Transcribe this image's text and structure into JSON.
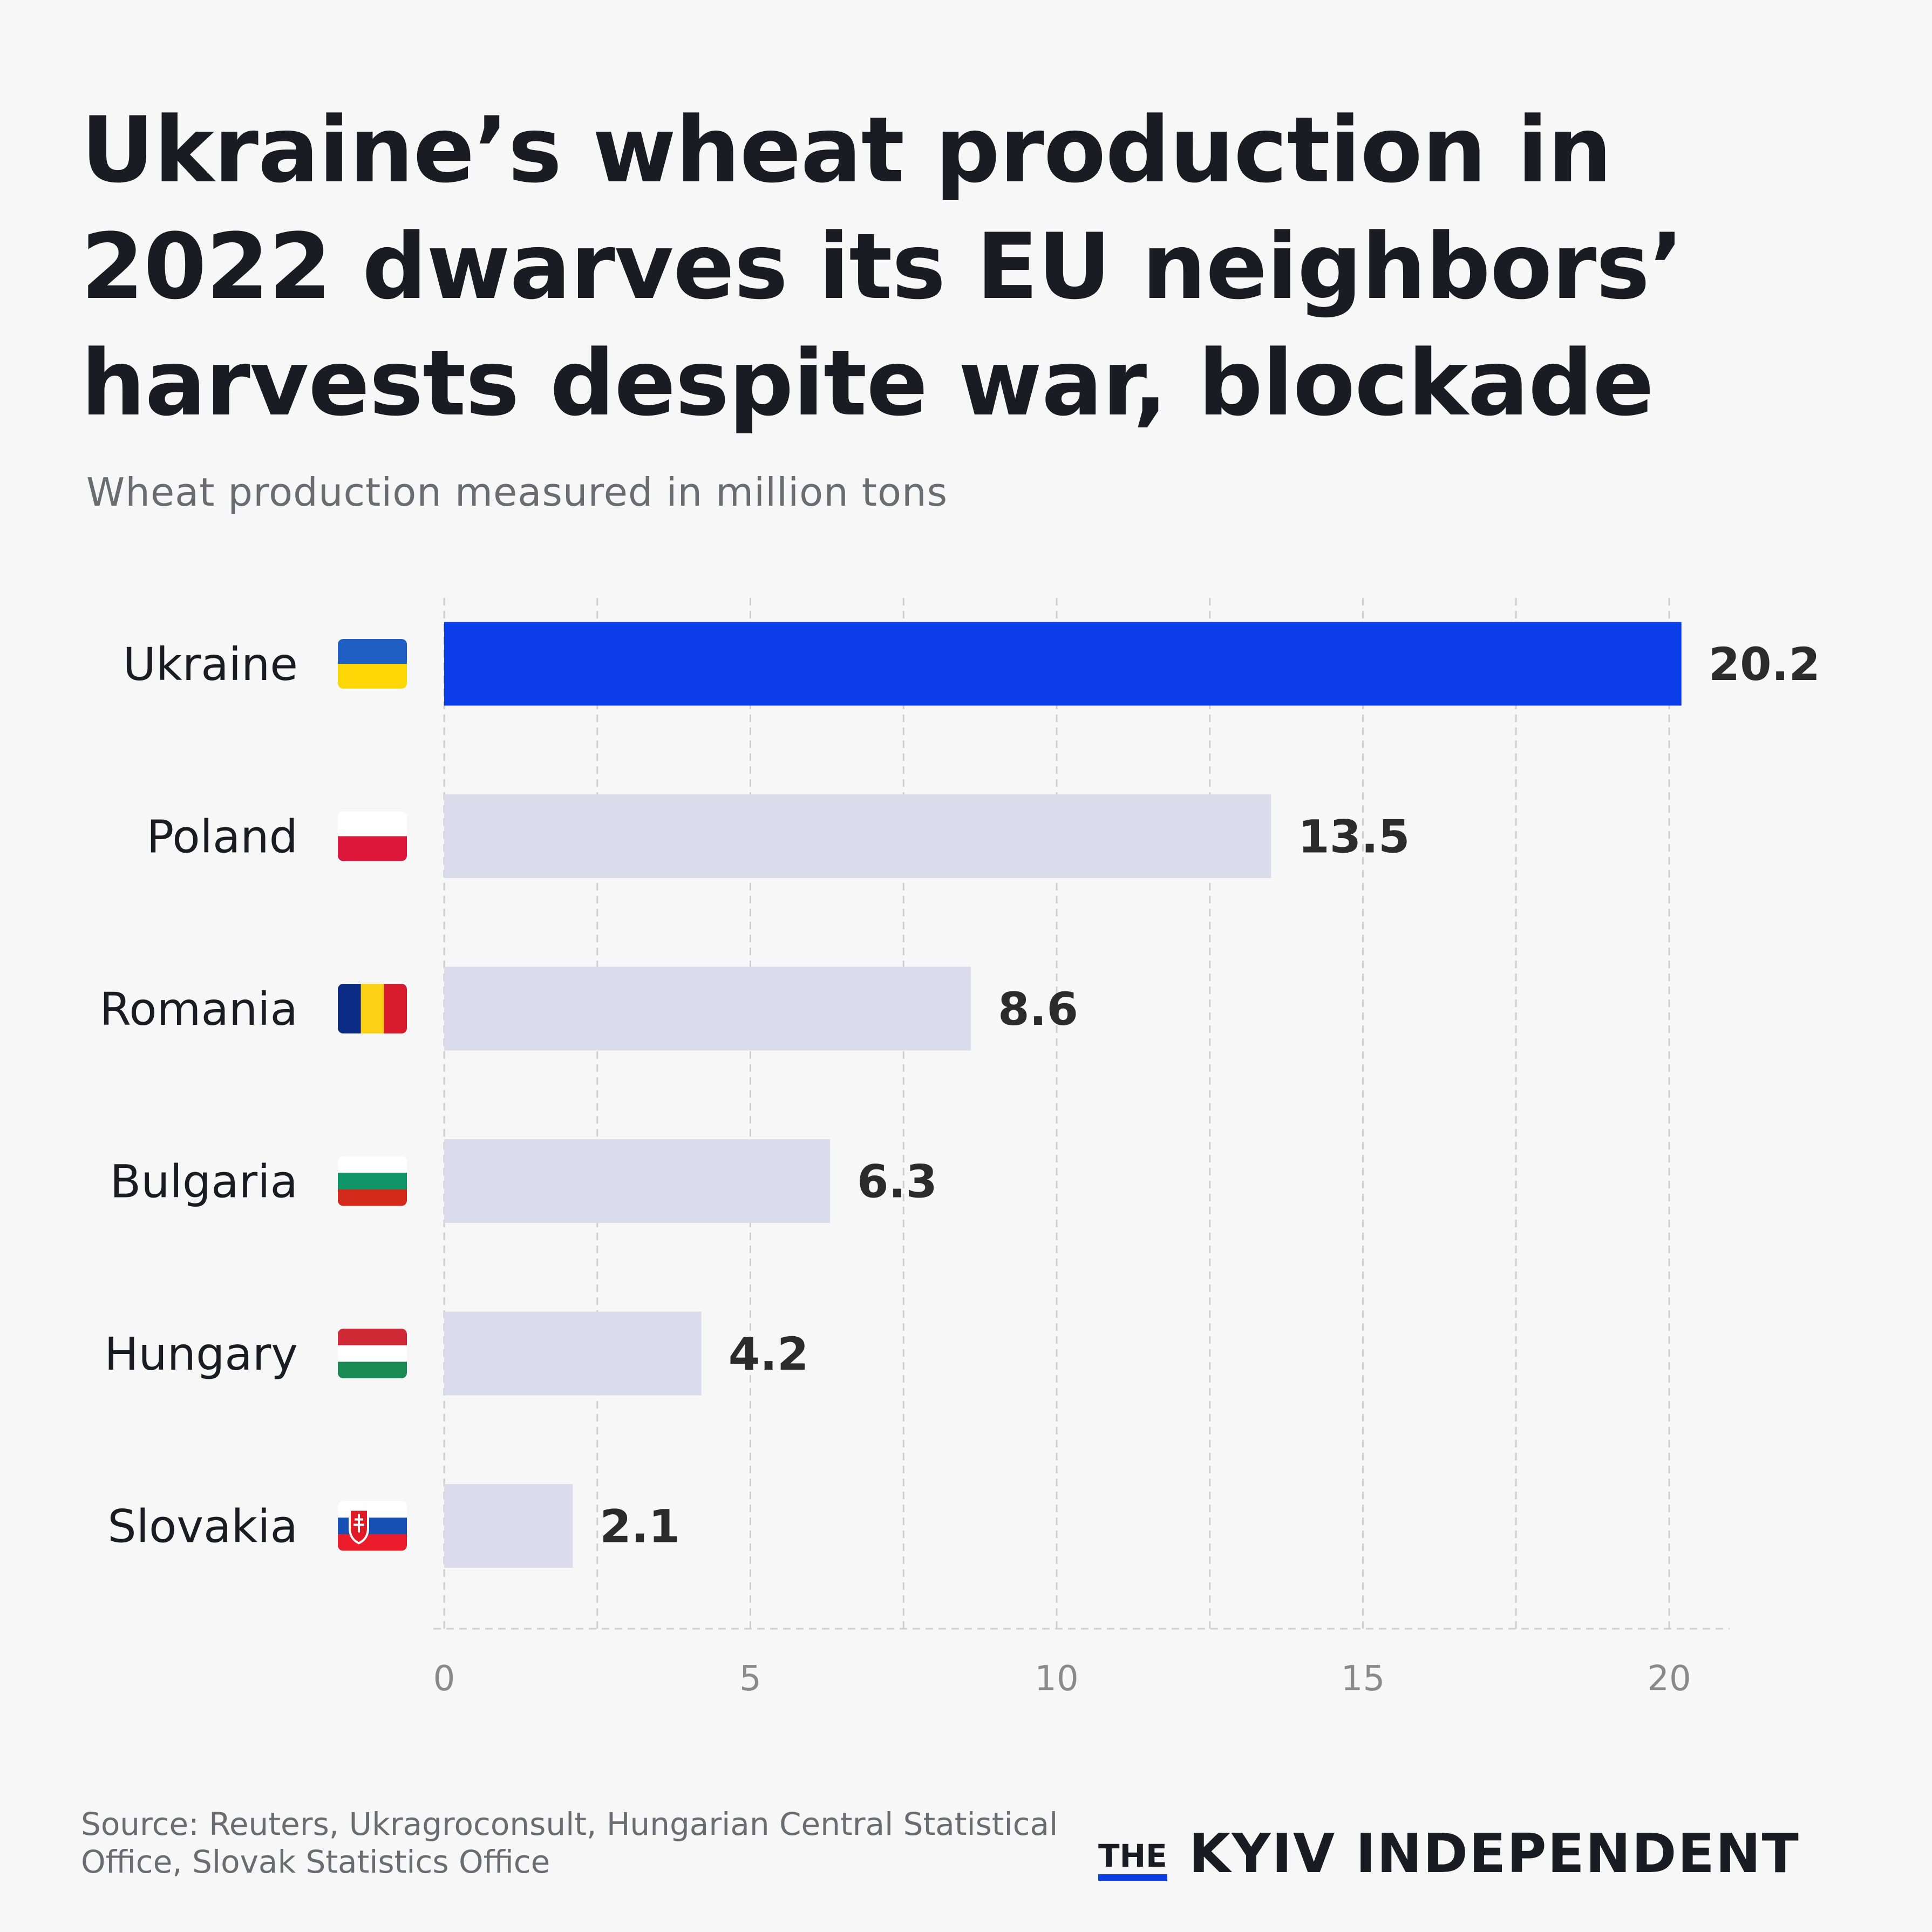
{
  "title": "Ukraine’s wheat production in 2022 dwarves its EU neighbors’ harvests despite war, blockade",
  "subtitle": "Wheat production measured in million tons",
  "source": "Source: Reuters, Ukragroconsult, Hungarian Central Statistical Office, Slovak Statistics Office",
  "brand": {
    "the": "THE",
    "name": "KYIV INDEPENDENT"
  },
  "colors": {
    "highlight": "#0b3de8",
    "bar": "#dadcec",
    "background": "#f7f7f7",
    "grid": "#cfcfcf"
  },
  "chart_data": {
    "type": "bar",
    "orientation": "horizontal",
    "categories": [
      "Ukraine",
      "Poland",
      "Romania",
      "Bulgaria",
      "Hungary",
      "Slovakia"
    ],
    "values": [
      20.2,
      13.5,
      8.6,
      6.3,
      4.2,
      2.1
    ],
    "value_labels": [
      "20.2",
      "13.5",
      "8.6",
      "6.3",
      "4.2",
      "2.1"
    ],
    "highlight": "Ukraine",
    "flags": [
      "ukraine-flag",
      "poland-flag",
      "romania-flag",
      "bulgaria-flag",
      "hungary-flag",
      "slovakia-flag"
    ],
    "xlim": [
      0,
      21
    ],
    "xticks": [
      0,
      5,
      10,
      15,
      20
    ],
    "grid": true
  }
}
